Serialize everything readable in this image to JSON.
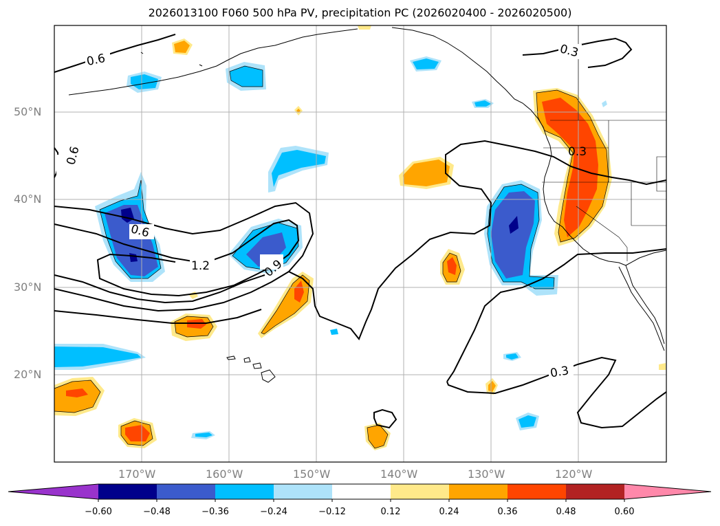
{
  "map": {
    "title": "2026013100 F060 500 hPa PV, precipitation PC (2026020400 - 2026020500)",
    "lat_labels": [
      "50°N",
      "40°N",
      "30°N",
      "20°N"
    ],
    "lon_labels": [
      "170°W",
      "160°W",
      "150°W",
      "140°W",
      "130°W",
      "120°W"
    ],
    "contour_labels": [
      "0.6",
      "0.6",
      "0.6",
      "1.2",
      "0.9",
      "0.3",
      "0.3",
      "0.3"
    ]
  },
  "colorbar": {
    "ticks": [
      "−0.60",
      "−0.48",
      "−0.36",
      "−0.24",
      "−0.12",
      "0.12",
      "0.24",
      "0.36",
      "0.48",
      "0.60"
    ],
    "colors": [
      "#9933cc",
      "#00008b",
      "#3b5bcc",
      "#00bfff",
      "#aee3fa",
      "#ffffff",
      "#ffe98a",
      "#ffa500",
      "#ff4500",
      "#b22222",
      "#ff88aa"
    ]
  }
}
